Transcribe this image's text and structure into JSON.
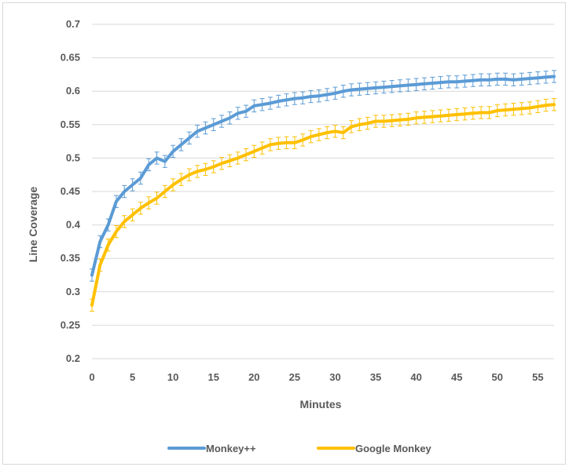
{
  "chart_data": {
    "type": "line",
    "title": "",
    "xlabel": "Minutes",
    "ylabel": "Line Coverage",
    "xlim": [
      0,
      57
    ],
    "ylim": [
      0.2,
      0.7
    ],
    "x_ticks": [
      "0",
      "5",
      "10",
      "15",
      "20",
      "25",
      "30",
      "35",
      "40",
      "45",
      "50",
      "55"
    ],
    "y_ticks": [
      "0.2",
      "0.25",
      "0.3",
      "0.35",
      "0.4",
      "0.45",
      "0.5",
      "0.55",
      "0.6",
      "0.65",
      "0.7"
    ],
    "grid": "horizontal",
    "legend_position": "bottom",
    "error_bars": true,
    "x": [
      0,
      1,
      2,
      3,
      4,
      5,
      6,
      7,
      8,
      9,
      10,
      11,
      12,
      13,
      14,
      15,
      16,
      17,
      18,
      19,
      20,
      21,
      22,
      23,
      24,
      25,
      26,
      27,
      28,
      29,
      30,
      31,
      32,
      33,
      34,
      35,
      36,
      37,
      38,
      39,
      40,
      41,
      42,
      43,
      44,
      45,
      46,
      47,
      48,
      49,
      50,
      51,
      52,
      53,
      54,
      55,
      56,
      57
    ],
    "series": [
      {
        "name": "Monkey++",
        "color": "#5b9bd5",
        "error": 0.009,
        "values": [
          0.325,
          0.375,
          0.4,
          0.435,
          0.45,
          0.46,
          0.47,
          0.49,
          0.5,
          0.495,
          0.51,
          0.52,
          0.53,
          0.54,
          0.545,
          0.55,
          0.555,
          0.56,
          0.567,
          0.57,
          0.578,
          0.58,
          0.582,
          0.585,
          0.587,
          0.589,
          0.59,
          0.592,
          0.593,
          0.595,
          0.597,
          0.6,
          0.602,
          0.603,
          0.604,
          0.605,
          0.606,
          0.607,
          0.608,
          0.609,
          0.61,
          0.611,
          0.612,
          0.613,
          0.614,
          0.614,
          0.615,
          0.616,
          0.617,
          0.617,
          0.618,
          0.618,
          0.617,
          0.618,
          0.619,
          0.62,
          0.621,
          0.622
        ]
      },
      {
        "name": "Google Monkey",
        "color": "#ffc000",
        "error": 0.009,
        "values": [
          0.28,
          0.34,
          0.37,
          0.39,
          0.405,
          0.415,
          0.425,
          0.433,
          0.44,
          0.45,
          0.46,
          0.468,
          0.475,
          0.48,
          0.483,
          0.487,
          0.492,
          0.496,
          0.5,
          0.505,
          0.51,
          0.515,
          0.52,
          0.522,
          0.523,
          0.523,
          0.527,
          0.532,
          0.535,
          0.538,
          0.54,
          0.538,
          0.547,
          0.55,
          0.552,
          0.555,
          0.555,
          0.556,
          0.557,
          0.558,
          0.56,
          0.561,
          0.562,
          0.563,
          0.564,
          0.565,
          0.566,
          0.567,
          0.568,
          0.568,
          0.571,
          0.572,
          0.573,
          0.574,
          0.575,
          0.577,
          0.579,
          0.58
        ]
      }
    ]
  }
}
